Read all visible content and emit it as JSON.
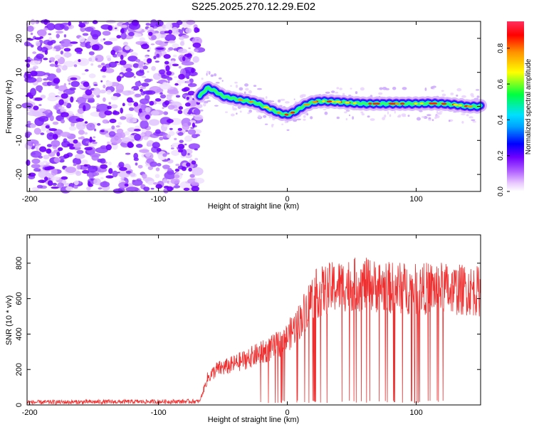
{
  "title": "S225.2025.270.12.29.E02",
  "colors": {
    "snr_line": "#f03030",
    "colormap": [
      "#ffffff",
      "#e8c8ff",
      "#b060ff",
      "#7000ff",
      "#0000ff",
      "#00e0ff",
      "#00ff40",
      "#ffff00",
      "#ff9000",
      "#ff0000",
      "#ff3060"
    ]
  },
  "chart_data": [
    {
      "type": "heatmap",
      "name": "spectrogram",
      "xlabel": "Height of straight line (km)",
      "ylabel": "Frequency (Hz)",
      "xlim": [
        -202,
        150
      ],
      "ylim": [
        -25,
        25
      ],
      "xticks": [
        -200,
        -100,
        0,
        100
      ],
      "yticks": [
        -20,
        -10,
        0,
        10,
        20
      ],
      "noise_region_x": [
        -202,
        -68
      ],
      "signal_onset_x": -68,
      "ridge": {
        "x": [
          -68,
          -62,
          -56,
          -50,
          -44,
          -38,
          -30,
          -24,
          -18,
          -12,
          -6,
          0,
          6,
          12,
          18,
          24,
          30,
          40,
          50,
          60,
          70,
          80,
          90,
          100,
          110,
          120,
          130,
          140,
          150
        ],
        "freq": [
          3,
          5.5,
          4.5,
          3,
          2.5,
          2,
          1.5,
          1,
          0,
          -1,
          -2,
          -2.5,
          -1.5,
          0,
          1,
          1.5,
          1.5,
          1.3,
          1,
          0.8,
          0.8,
          0.8,
          0.8,
          0.8,
          0.9,
          0.8,
          0.5,
          0,
          0
        ]
      },
      "colorbar": {
        "label": "Normalized spectral amplitude",
        "range": [
          0,
          0.95
        ],
        "ticks": [
          0.0,
          0.2,
          0.4,
          0.6,
          0.8
        ]
      }
    },
    {
      "type": "line",
      "name": "snr",
      "xlabel": "Height of straight line (km)",
      "ylabel": "SNR (10 * v/v)",
      "xlim": [
        -202,
        150
      ],
      "ylim": [
        0,
        960
      ],
      "xticks": [
        -200,
        -100,
        0,
        100
      ],
      "yticks": [
        0,
        200,
        400,
        600,
        800
      ],
      "series": [
        {
          "name": "SNR",
          "envelope_x": [
            -202,
            -68,
            -62,
            -55,
            -45,
            -35,
            -25,
            -15,
            -5,
            0,
            10,
            20,
            30,
            40,
            50,
            60,
            70,
            80,
            90,
            100,
            110,
            120,
            130,
            140,
            150
          ],
          "envelope_y": [
            15,
            20,
            150,
            200,
            220,
            250,
            280,
            310,
            350,
            380,
            480,
            620,
            650,
            670,
            680,
            680,
            670,
            660,
            660,
            650,
            660,
            660,
            650,
            650,
            640
          ]
        }
      ]
    }
  ]
}
